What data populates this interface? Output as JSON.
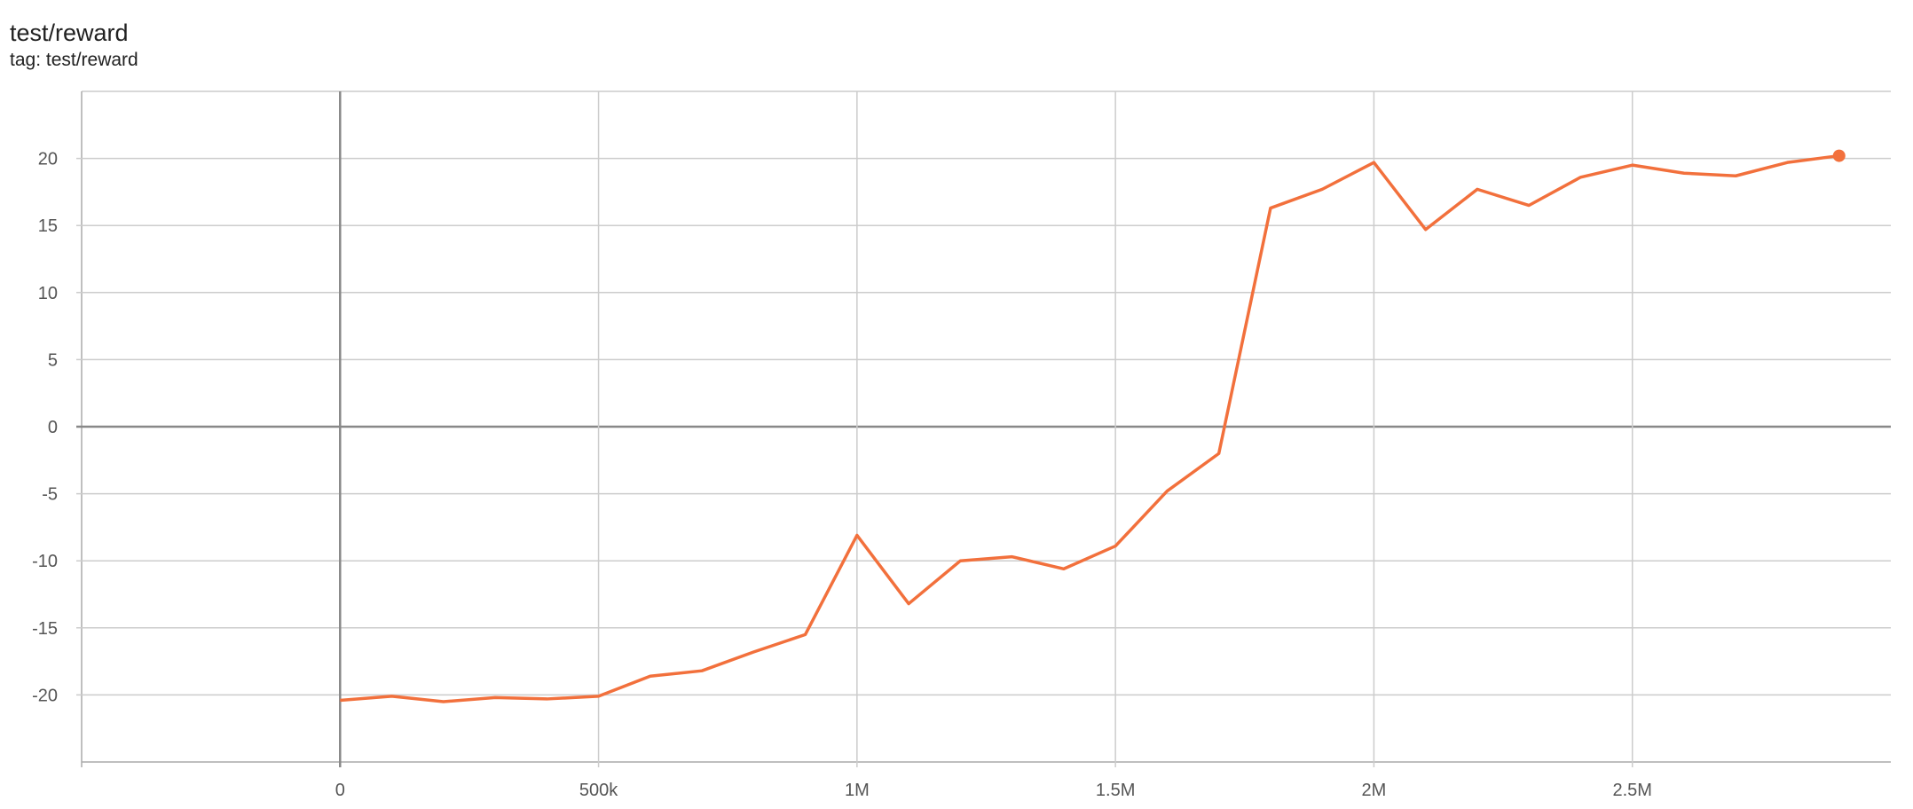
{
  "header": {
    "title": "test/reward",
    "subtitle": "tag: test/reward"
  },
  "chart_data": {
    "type": "line",
    "title": "test/reward",
    "xlabel": "",
    "ylabel": "",
    "xlim": [
      -500000,
      3000000
    ],
    "ylim": [
      -25,
      25
    ],
    "grid": true,
    "x_ticks": [
      0,
      500000,
      1000000,
      1500000,
      2000000,
      2500000
    ],
    "x_tick_labels": [
      "0",
      "500k",
      "1M",
      "1.5M",
      "2M",
      "2.5M"
    ],
    "y_ticks": [
      -20,
      -15,
      -10,
      -5,
      0,
      5,
      10,
      15,
      20
    ],
    "y_tick_labels": [
      "-20",
      "-15",
      "-10",
      "-5",
      "0",
      "5",
      "10",
      "15",
      "20"
    ],
    "series": [
      {
        "color": "#f2703c",
        "x": [
          0,
          100000,
          200000,
          300000,
          400000,
          500000,
          600000,
          700000,
          800000,
          900000,
          1000000,
          1100000,
          1200000,
          1300000,
          1400000,
          1500000,
          1600000,
          1700000,
          1800000,
          1900000,
          2000000,
          2100000,
          2200000,
          2300000,
          2400000,
          2500000,
          2600000,
          2700000,
          2800000,
          2900000
        ],
        "y": [
          -20.4,
          -20.1,
          -20.5,
          -20.2,
          -20.3,
          -20.1,
          -18.6,
          -18.2,
          -16.8,
          -15.5,
          -8.1,
          -13.2,
          -10.0,
          -9.7,
          -10.6,
          -8.9,
          -4.8,
          -2.0,
          16.3,
          17.7,
          19.7,
          14.7,
          17.7,
          16.5,
          18.6,
          19.5,
          18.9,
          18.7,
          19.7,
          20.2
        ]
      }
    ]
  }
}
